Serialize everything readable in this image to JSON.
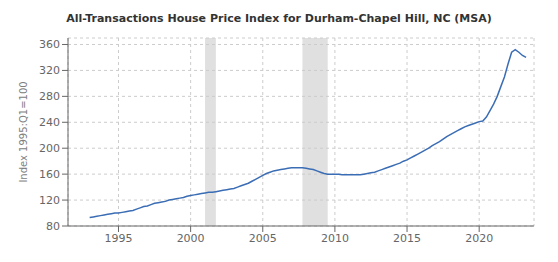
{
  "chart_data": {
    "type": "line",
    "title": "All-Transactions House Price Index for Durham-Chapel Hill, NC (MSA)",
    "ylabel": "Index 1995:Q1=100",
    "color": "#3b6db5",
    "grid": true,
    "xlim": [
      1991.5,
      2023.8
    ],
    "xticks": [
      1995,
      2000,
      2005,
      2010,
      2015,
      2020
    ],
    "ylim": [
      80,
      370
    ],
    "yticks": [
      80,
      120,
      160,
      200,
      240,
      280,
      320,
      360
    ],
    "recession_bands": [
      [
        2001.0,
        2001.75
      ],
      [
        2007.75,
        2009.5
      ]
    ],
    "x": [
      1993.0,
      1993.25,
      1993.5,
      1993.75,
      1994.0,
      1994.25,
      1994.5,
      1994.75,
      1995.0,
      1995.25,
      1995.5,
      1995.75,
      1996.0,
      1996.25,
      1996.5,
      1996.75,
      1997.0,
      1997.25,
      1997.5,
      1997.75,
      1998.0,
      1998.25,
      1998.5,
      1998.75,
      1999.0,
      1999.25,
      1999.5,
      1999.75,
      2000.0,
      2000.25,
      2000.5,
      2000.75,
      2001.0,
      2001.25,
      2001.5,
      2001.75,
      2002.0,
      2002.25,
      2002.5,
      2002.75,
      2003.0,
      2003.25,
      2003.5,
      2003.75,
      2004.0,
      2004.25,
      2004.5,
      2004.75,
      2005.0,
      2005.25,
      2005.5,
      2005.75,
      2006.0,
      2006.25,
      2006.5,
      2006.75,
      2007.0,
      2007.25,
      2007.5,
      2007.75,
      2008.0,
      2008.25,
      2008.5,
      2008.75,
      2009.0,
      2009.25,
      2009.5,
      2009.75,
      2010.0,
      2010.25,
      2010.5,
      2010.75,
      2011.0,
      2011.25,
      2011.5,
      2011.75,
      2012.0,
      2012.25,
      2012.5,
      2012.75,
      2013.0,
      2013.25,
      2013.5,
      2013.75,
      2014.0,
      2014.25,
      2014.5,
      2014.75,
      2015.0,
      2015.25,
      2015.5,
      2015.75,
      2016.0,
      2016.25,
      2016.5,
      2016.75,
      2017.0,
      2017.25,
      2017.5,
      2017.75,
      2018.0,
      2018.25,
      2018.5,
      2018.75,
      2019.0,
      2019.25,
      2019.5,
      2019.75,
      2020.0,
      2020.25,
      2020.5,
      2020.75,
      2021.0,
      2021.25,
      2021.5,
      2021.75,
      2022.0,
      2022.25,
      2022.5,
      2022.75,
      2023.0,
      2023.25
    ],
    "values": [
      93,
      94,
      95,
      96,
      97,
      98,
      99,
      100,
      100,
      101,
      102,
      103,
      104,
      106,
      108,
      110,
      111,
      113,
      115,
      116,
      117,
      118,
      120,
      121,
      122,
      123,
      124,
      126,
      127,
      128,
      129,
      130,
      131,
      132,
      132,
      133,
      134,
      135,
      136,
      137,
      138,
      140,
      142,
      144,
      146,
      149,
      152,
      155,
      158,
      161,
      163,
      165,
      166,
      167,
      168,
      169,
      170,
      170,
      170,
      170,
      169,
      168,
      167,
      165,
      163,
      161,
      160,
      160,
      160,
      160,
      159,
      159,
      159,
      159,
      159,
      159,
      160,
      161,
      162,
      163,
      165,
      167,
      169,
      171,
      173,
      175,
      177,
      180,
      182,
      185,
      188,
      191,
      194,
      197,
      200,
      204,
      207,
      210,
      214,
      218,
      221,
      224,
      227,
      230,
      233,
      235,
      237,
      239,
      241,
      242,
      248,
      258,
      268,
      280,
      295,
      310,
      330,
      348,
      352,
      348,
      343,
      340
    ]
  }
}
